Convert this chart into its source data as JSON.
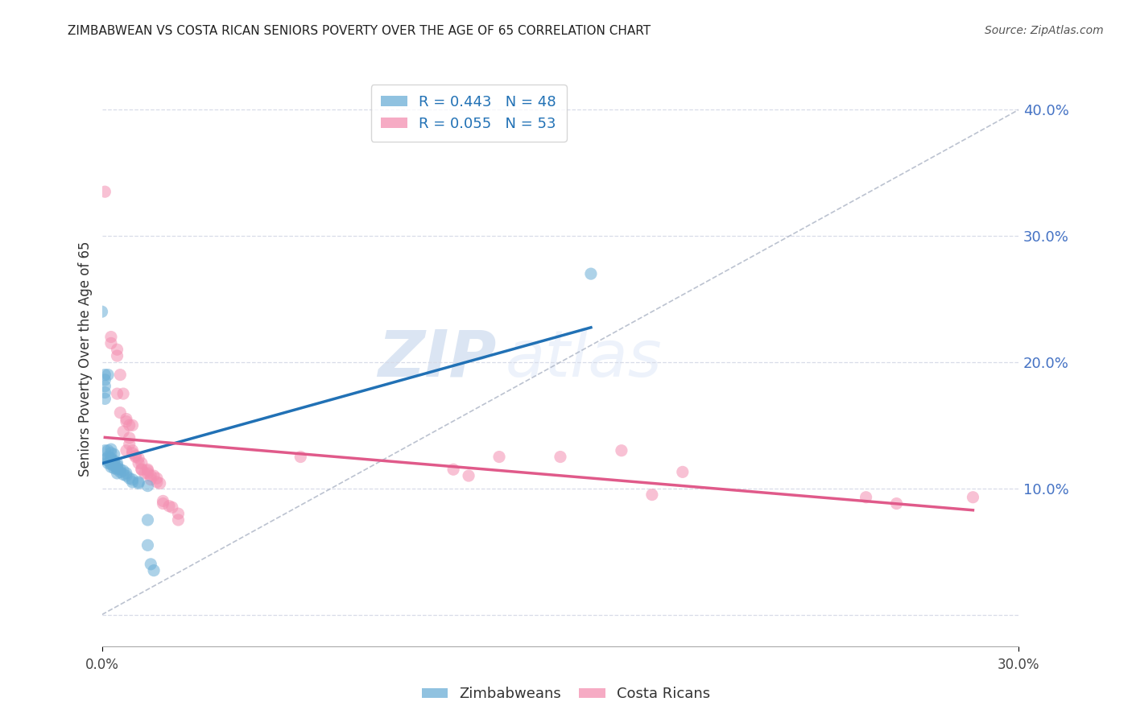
{
  "title": "ZIMBABWEAN VS COSTA RICAN SENIORS POVERTY OVER THE AGE OF 65 CORRELATION CHART",
  "source": "Source: ZipAtlas.com",
  "ylabel": "Seniors Poverty Over the Age of 65",
  "xmin": 0.0,
  "xmax": 0.3,
  "ymin": -0.025,
  "ymax": 0.43,
  "watermark_zip": "ZIP",
  "watermark_atlas": "atlas",
  "zim_color": "#6baed6",
  "cr_color": "#f48fb1",
  "zim_line_color": "#2171b5",
  "cr_line_color": "#e05a8a",
  "diagonal_color": "#b0b8c8",
  "background_color": "#ffffff",
  "grid_color": "#d8dce8",
  "title_color": "#222222",
  "source_color": "#555555",
  "axis_label_color": "#333333",
  "right_tick_color": "#4472c4",
  "zim_points": [
    [
      0.0,
      0.24
    ],
    [
      0.001,
      0.19
    ],
    [
      0.001,
      0.186
    ],
    [
      0.002,
      0.19
    ],
    [
      0.001,
      0.181
    ],
    [
      0.001,
      0.176
    ],
    [
      0.001,
      0.171
    ],
    [
      0.003,
      0.131
    ],
    [
      0.002,
      0.13
    ],
    [
      0.001,
      0.13
    ],
    [
      0.003,
      0.128
    ],
    [
      0.004,
      0.127
    ],
    [
      0.002,
      0.125
    ],
    [
      0.003,
      0.124
    ],
    [
      0.001,
      0.123
    ],
    [
      0.003,
      0.123
    ],
    [
      0.002,
      0.122
    ],
    [
      0.004,
      0.122
    ],
    [
      0.003,
      0.121
    ],
    [
      0.004,
      0.12
    ],
    [
      0.003,
      0.12
    ],
    [
      0.002,
      0.12
    ],
    [
      0.005,
      0.12
    ],
    [
      0.003,
      0.119
    ],
    [
      0.005,
      0.118
    ],
    [
      0.004,
      0.118
    ],
    [
      0.003,
      0.117
    ],
    [
      0.005,
      0.116
    ],
    [
      0.004,
      0.116
    ],
    [
      0.006,
      0.115
    ],
    [
      0.005,
      0.115
    ],
    [
      0.007,
      0.114
    ],
    [
      0.006,
      0.113
    ],
    [
      0.005,
      0.112
    ],
    [
      0.008,
      0.112
    ],
    [
      0.007,
      0.111
    ],
    [
      0.008,
      0.11
    ],
    [
      0.009,
      0.108
    ],
    [
      0.01,
      0.107
    ],
    [
      0.01,
      0.105
    ],
    [
      0.012,
      0.105
    ],
    [
      0.012,
      0.104
    ],
    [
      0.015,
      0.102
    ],
    [
      0.015,
      0.075
    ],
    [
      0.015,
      0.055
    ],
    [
      0.016,
      0.04
    ],
    [
      0.017,
      0.035
    ],
    [
      0.16,
      0.27
    ]
  ],
  "cr_points": [
    [
      0.001,
      0.335
    ],
    [
      0.003,
      0.22
    ],
    [
      0.003,
      0.215
    ],
    [
      0.005,
      0.21
    ],
    [
      0.005,
      0.205
    ],
    [
      0.006,
      0.19
    ],
    [
      0.005,
      0.175
    ],
    [
      0.007,
      0.175
    ],
    [
      0.006,
      0.16
    ],
    [
      0.008,
      0.155
    ],
    [
      0.008,
      0.153
    ],
    [
      0.009,
      0.15
    ],
    [
      0.01,
      0.15
    ],
    [
      0.007,
      0.145
    ],
    [
      0.009,
      0.14
    ],
    [
      0.009,
      0.135
    ],
    [
      0.008,
      0.13
    ],
    [
      0.01,
      0.13
    ],
    [
      0.01,
      0.128
    ],
    [
      0.011,
      0.126
    ],
    [
      0.011,
      0.125
    ],
    [
      0.012,
      0.124
    ],
    [
      0.012,
      0.12
    ],
    [
      0.013,
      0.12
    ],
    [
      0.013,
      0.115
    ],
    [
      0.013,
      0.115
    ],
    [
      0.015,
      0.115
    ],
    [
      0.015,
      0.114
    ],
    [
      0.014,
      0.112
    ],
    [
      0.015,
      0.112
    ],
    [
      0.016,
      0.11
    ],
    [
      0.017,
      0.11
    ],
    [
      0.018,
      0.108
    ],
    [
      0.016,
      0.107
    ],
    [
      0.018,
      0.105
    ],
    [
      0.019,
      0.104
    ],
    [
      0.02,
      0.09
    ],
    [
      0.02,
      0.088
    ],
    [
      0.022,
      0.086
    ],
    [
      0.023,
      0.085
    ],
    [
      0.025,
      0.08
    ],
    [
      0.025,
      0.075
    ],
    [
      0.065,
      0.125
    ],
    [
      0.115,
      0.115
    ],
    [
      0.12,
      0.11
    ],
    [
      0.13,
      0.125
    ],
    [
      0.15,
      0.125
    ],
    [
      0.17,
      0.13
    ],
    [
      0.18,
      0.095
    ],
    [
      0.19,
      0.113
    ],
    [
      0.25,
      0.093
    ],
    [
      0.26,
      0.088
    ],
    [
      0.285,
      0.093
    ]
  ]
}
